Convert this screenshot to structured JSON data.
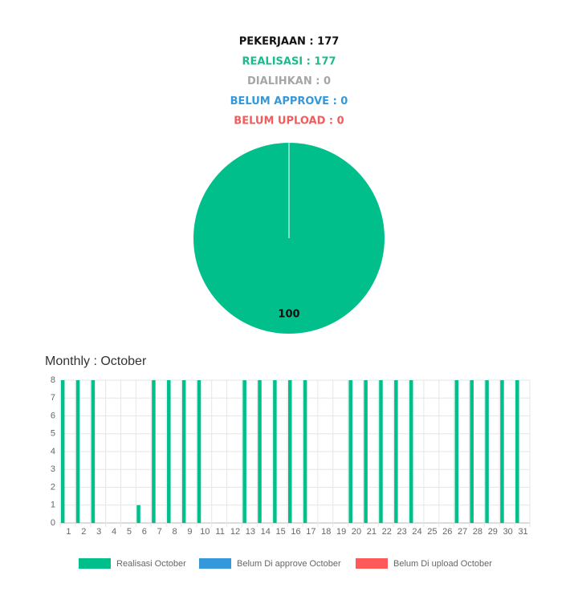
{
  "summary": [
    {
      "text": "PEKERJAAN : 177",
      "color": "#111111"
    },
    {
      "text": "REALISASI : 177",
      "color": "#1abc8c"
    },
    {
      "text": "DIALIHKAN : 0",
      "color": "#a6a6a6"
    },
    {
      "text": "BELUM APPROVE : 0",
      "color": "#3498db"
    },
    {
      "text": "BELUM UPLOAD : 0",
      "color": "#f25c5c"
    }
  ],
  "chart_data": [
    {
      "type": "pie",
      "values": [
        100
      ],
      "colors": [
        "#00bf8a"
      ]
    },
    {
      "type": "bar",
      "title": "Monthly : October",
      "categories": [
        "1",
        "2",
        "3",
        "4",
        "5",
        "6",
        "7",
        "8",
        "9",
        "10",
        "11",
        "12",
        "13",
        "14",
        "15",
        "16",
        "17",
        "18",
        "19",
        "20",
        "21",
        "22",
        "23",
        "24",
        "25",
        "26",
        "27",
        "28",
        "29",
        "30",
        "31"
      ],
      "series": [
        {
          "name": "Realisasi October",
          "color": "#00bf8a",
          "values": [
            8,
            8,
            8,
            0,
            0,
            1,
            8,
            8,
            8,
            8,
            0,
            0,
            8,
            8,
            8,
            8,
            8,
            0,
            0,
            8,
            8,
            8,
            8,
            8,
            0,
            0,
            8,
            8,
            8,
            8,
            8
          ]
        },
        {
          "name": "Belum Di approve October",
          "color": "#3498db",
          "values": [
            0,
            0,
            0,
            0,
            0,
            0,
            0,
            0,
            0,
            0,
            0,
            0,
            0,
            0,
            0,
            0,
            0,
            0,
            0,
            0,
            0,
            0,
            0,
            0,
            0,
            0,
            0,
            0,
            0,
            0,
            0
          ]
        },
        {
          "name": "Belum Di upload October",
          "color": "#ff5a5a",
          "values": [
            0,
            0,
            0,
            0,
            0,
            0,
            0,
            0,
            0,
            0,
            0,
            0,
            0,
            0,
            0,
            0,
            0,
            0,
            0,
            0,
            0,
            0,
            0,
            0,
            0,
            0,
            0,
            0,
            0,
            0,
            0
          ]
        }
      ],
      "ylim": [
        0,
        8
      ],
      "yticks": [
        0,
        1,
        2,
        3,
        4,
        5,
        6,
        7,
        8
      ],
      "grid": true,
      "legend": "bottom"
    }
  ]
}
